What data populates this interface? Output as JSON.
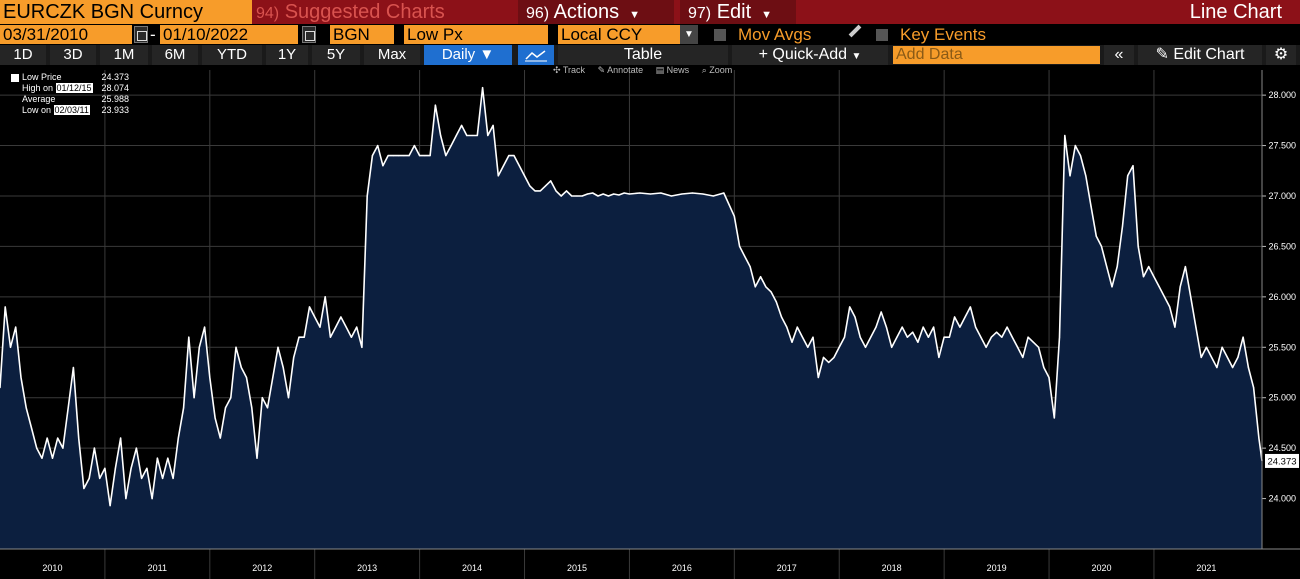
{
  "toolbar": {
    "ticker": "EURCZK BGN Curncy",
    "suggested_num": "94)",
    "suggested": "Suggested Charts",
    "actions_num": "96)",
    "actions": "Actions",
    "edit_num": "97)",
    "edit": "Edit",
    "chart_kind": "Line Chart"
  },
  "params": {
    "start_date": "03/31/2010",
    "dash": "-",
    "end_date": "01/10/2022",
    "source": "BGN",
    "field": "Low Px",
    "currency": "Local CCY",
    "mov_avgs": "Mov Avgs",
    "key_events": "Key Events"
  },
  "periods": [
    "1D",
    "3D",
    "1M",
    "6M",
    "YTD",
    "1Y",
    "5Y",
    "Max"
  ],
  "frequency": "Daily ▼",
  "table_label": "Table",
  "quick_add": "+ Quick-Add",
  "add_data_placeholder": "Add Data",
  "edit_chart": "Edit Chart",
  "subtools": [
    "✣ Track",
    "✎ Annotate",
    "▤ News",
    "⌕ Zoom"
  ],
  "legend": [
    {
      "label": "Low Price",
      "value": "24.373"
    },
    {
      "label": "High on ",
      "date": "01/12/15",
      "value": "28.074"
    },
    {
      "label": "Average",
      "value": "25.988"
    },
    {
      "label": "Low on ",
      "date": "02/03/11",
      "value": "23.933"
    }
  ],
  "colors": {
    "line": "#ffffff",
    "fill": "#0c1f3f",
    "accent": "#f79c2a",
    "header": "#8c1118"
  },
  "chart_data": {
    "type": "area",
    "title": "",
    "xlabel": "",
    "ylabel": "",
    "ylim": [
      23.5,
      28.15
    ],
    "yticks": [
      "24.000",
      "24.500",
      "25.000",
      "25.500",
      "26.000",
      "26.500",
      "27.000",
      "27.500",
      "28.000"
    ],
    "xlim": [
      2010.0,
      2022.03
    ],
    "xticks": [
      "2010",
      "2011",
      "2012",
      "2013",
      "2014",
      "2015",
      "2016",
      "2017",
      "2018",
      "2019",
      "2020",
      "2021"
    ],
    "last_value": "24.373",
    "x": [
      2010.0,
      2010.05,
      2010.1,
      2010.15,
      2010.2,
      2010.25,
      2010.3,
      2010.35,
      2010.4,
      2010.45,
      2010.5,
      2010.55,
      2010.6,
      2010.65,
      2010.7,
      2010.75,
      2010.8,
      2010.85,
      2010.9,
      2010.95,
      2011.0,
      2011.05,
      2011.1,
      2011.15,
      2011.2,
      2011.25,
      2011.3,
      2011.35,
      2011.4,
      2011.45,
      2011.5,
      2011.55,
      2011.6,
      2011.65,
      2011.7,
      2011.75,
      2011.8,
      2011.85,
      2011.9,
      2011.95,
      2012.0,
      2012.05,
      2012.1,
      2012.15,
      2012.2,
      2012.25,
      2012.3,
      2012.35,
      2012.4,
      2012.45,
      2012.5,
      2012.55,
      2012.6,
      2012.65,
      2012.7,
      2012.75,
      2012.8,
      2012.85,
      2012.9,
      2012.95,
      2013.0,
      2013.05,
      2013.1,
      2013.15,
      2013.2,
      2013.25,
      2013.3,
      2013.35,
      2013.4,
      2013.45,
      2013.5,
      2013.55,
      2013.6,
      2013.65,
      2013.7,
      2013.75,
      2013.8,
      2013.85,
      2013.9,
      2013.95,
      2014.0,
      2014.05,
      2014.1,
      2014.15,
      2014.2,
      2014.25,
      2014.3,
      2014.35,
      2014.4,
      2014.45,
      2014.5,
      2014.55,
      2014.6,
      2014.65,
      2014.7,
      2014.75,
      2014.8,
      2014.85,
      2014.9,
      2014.95,
      2015.0,
      2015.05,
      2015.1,
      2015.15,
      2015.2,
      2015.25,
      2015.3,
      2015.35,
      2015.4,
      2015.45,
      2015.5,
      2015.55,
      2015.6,
      2015.65,
      2015.7,
      2015.75,
      2015.8,
      2015.85,
      2015.9,
      2015.95,
      2016.0,
      2016.1,
      2016.2,
      2016.3,
      2016.4,
      2016.5,
      2016.6,
      2016.7,
      2016.8,
      2016.9,
      2017.0,
      2017.05,
      2017.1,
      2017.15,
      2017.2,
      2017.25,
      2017.3,
      2017.35,
      2017.4,
      2017.45,
      2017.5,
      2017.55,
      2017.6,
      2017.65,
      2017.7,
      2017.75,
      2017.8,
      2017.85,
      2017.9,
      2017.95,
      2018.0,
      2018.05,
      2018.1,
      2018.15,
      2018.2,
      2018.25,
      2018.3,
      2018.35,
      2018.4,
      2018.45,
      2018.5,
      2018.55,
      2018.6,
      2018.65,
      2018.7,
      2018.75,
      2018.8,
      2018.85,
      2018.9,
      2018.95,
      2019.0,
      2019.05,
      2019.1,
      2019.15,
      2019.2,
      2019.25,
      2019.3,
      2019.35,
      2019.4,
      2019.45,
      2019.5,
      2019.55,
      2019.6,
      2019.65,
      2019.7,
      2019.75,
      2019.8,
      2019.85,
      2019.9,
      2019.95,
      2020.0,
      2020.05,
      2020.1,
      2020.15,
      2020.2,
      2020.25,
      2020.3,
      2020.35,
      2020.4,
      2020.45,
      2020.5,
      2020.55,
      2020.6,
      2020.65,
      2020.7,
      2020.75,
      2020.8,
      2020.85,
      2020.9,
      2020.95,
      2021.0,
      2021.05,
      2021.1,
      2021.15,
      2021.2,
      2021.25,
      2021.3,
      2021.35,
      2021.4,
      2021.45,
      2021.5,
      2021.55,
      2021.6,
      2021.65,
      2021.7,
      2021.75,
      2021.8,
      2021.85,
      2021.9,
      2021.95,
      2022.0,
      2022.03
    ],
    "y": [
      25.1,
      25.9,
      25.5,
      25.7,
      25.2,
      24.9,
      24.7,
      24.5,
      24.4,
      24.6,
      24.4,
      24.6,
      24.5,
      24.9,
      25.3,
      24.6,
      24.1,
      24.2,
      24.5,
      24.2,
      24.3,
      23.93,
      24.3,
      24.6,
      24.0,
      24.3,
      24.5,
      24.2,
      24.3,
      24.0,
      24.4,
      24.2,
      24.4,
      24.2,
      24.6,
      24.9,
      25.6,
      25.0,
      25.5,
      25.7,
      25.2,
      24.8,
      24.6,
      24.9,
      25.0,
      25.5,
      25.3,
      25.2,
      24.9,
      24.4,
      25.0,
      24.9,
      25.2,
      25.5,
      25.3,
      25.0,
      25.4,
      25.6,
      25.6,
      25.9,
      25.8,
      25.7,
      26.0,
      25.6,
      25.7,
      25.8,
      25.7,
      25.6,
      25.7,
      25.5,
      27.0,
      27.4,
      27.5,
      27.3,
      27.4,
      27.4,
      27.4,
      27.4,
      27.4,
      27.5,
      27.4,
      27.4,
      27.4,
      27.9,
      27.6,
      27.4,
      27.5,
      27.6,
      27.7,
      27.6,
      27.6,
      27.6,
      28.074,
      27.6,
      27.7,
      27.2,
      27.3,
      27.4,
      27.4,
      27.3,
      27.2,
      27.1,
      27.05,
      27.05,
      27.1,
      27.15,
      27.05,
      27.0,
      27.05,
      27.0,
      27.0,
      27.0,
      27.02,
      27.03,
      27.0,
      27.02,
      27.0,
      27.02,
      27.01,
      27.03,
      27.02,
      27.03,
      27.02,
      27.03,
      27.0,
      27.02,
      27.03,
      27.02,
      27.0,
      27.03,
      26.8,
      26.5,
      26.4,
      26.3,
      26.1,
      26.2,
      26.1,
      26.05,
      25.95,
      25.8,
      25.7,
      25.55,
      25.7,
      25.6,
      25.5,
      25.6,
      25.2,
      25.4,
      25.35,
      25.4,
      25.5,
      25.6,
      25.9,
      25.8,
      25.6,
      25.5,
      25.6,
      25.7,
      25.85,
      25.7,
      25.5,
      25.6,
      25.7,
      25.6,
      25.65,
      25.55,
      25.7,
      25.6,
      25.7,
      25.4,
      25.6,
      25.6,
      25.8,
      25.7,
      25.8,
      25.9,
      25.7,
      25.6,
      25.5,
      25.6,
      25.65,
      25.6,
      25.7,
      25.6,
      25.5,
      25.4,
      25.6,
      25.55,
      25.5,
      25.3,
      25.2,
      24.8,
      25.6,
      27.6,
      27.2,
      27.5,
      27.4,
      27.2,
      26.9,
      26.6,
      26.5,
      26.3,
      26.1,
      26.3,
      26.7,
      27.2,
      27.3,
      26.5,
      26.2,
      26.3,
      26.2,
      26.1,
      26.0,
      25.9,
      25.7,
      26.1,
      26.3,
      26.0,
      25.7,
      25.4,
      25.5,
      25.4,
      25.3,
      25.5,
      25.4,
      25.3,
      25.4,
      25.6,
      25.3,
      25.1,
      24.6,
      24.373
    ]
  }
}
